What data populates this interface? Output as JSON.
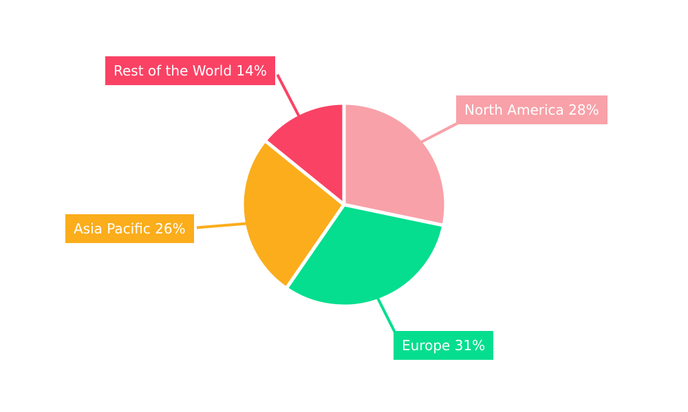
{
  "chart_data": {
    "type": "pie",
    "title": "",
    "categories": [
      "North America",
      "Europe",
      "Asia Pacific",
      "Rest of the World"
    ],
    "values": [
      28,
      31,
      26,
      14
    ],
    "unit": "%",
    "start_angle_deg": 0,
    "direction": "clockwise",
    "legend": "none",
    "background_color": "#FFFFFF",
    "label_text_color": "#FFFFFF",
    "slices": [
      {
        "label": "North America",
        "value": 28,
        "display": "North America 28%",
        "color": "#F8A1A8"
      },
      {
        "label": "Europe",
        "value": 31,
        "display": "Europe 31%",
        "color": "#04DE8E"
      },
      {
        "label": "Asia Pacific",
        "value": 26,
        "display": "Asia Pacific 26%",
        "color": "#FBAD1B"
      },
      {
        "label": "Rest of the World",
        "value": 14,
        "display": "Rest of the World 14%",
        "color": "#FA4264"
      }
    ]
  }
}
